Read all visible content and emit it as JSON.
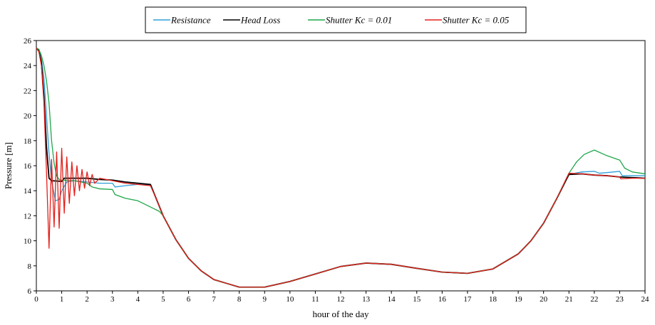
{
  "chart_data": {
    "type": "line",
    "xlabel": "hour of the day",
    "ylabel": "Pressure [m]",
    "xlim": [
      0,
      24
    ],
    "ylim": [
      6,
      26
    ],
    "xticks": [
      0,
      1,
      2,
      3,
      4,
      5,
      6,
      7,
      8,
      9,
      10,
      11,
      12,
      13,
      14,
      15,
      16,
      17,
      18,
      19,
      20,
      21,
      22,
      23,
      24
    ],
    "yticks": [
      6,
      8,
      10,
      12,
      14,
      16,
      18,
      20,
      22,
      24,
      26
    ],
    "grid": false,
    "legend_position": "top-center",
    "series": [
      {
        "name": "Resistance",
        "color": "#2f9fd8",
        "points": [
          [
            0,
            25.4
          ],
          [
            0.1,
            25.2
          ],
          [
            0.2,
            24.5
          ],
          [
            0.3,
            23.0
          ],
          [
            0.4,
            20.0
          ],
          [
            0.5,
            17.0
          ],
          [
            0.6,
            14.8
          ],
          [
            0.75,
            13.2
          ],
          [
            0.9,
            13.3
          ],
          [
            1.0,
            14.0
          ],
          [
            1.2,
            14.7
          ],
          [
            1.5,
            14.8
          ],
          [
            2.0,
            14.7
          ],
          [
            2.5,
            14.6
          ],
          [
            3.0,
            14.6
          ],
          [
            3.1,
            14.3
          ],
          [
            3.5,
            14.4
          ],
          [
            4.0,
            14.5
          ],
          [
            4.3,
            14.5
          ],
          [
            4.5,
            14.4
          ],
          [
            4.7,
            13.5
          ],
          [
            5.0,
            12.0
          ],
          [
            5.5,
            10.1
          ],
          [
            6,
            8.6
          ],
          [
            6.5,
            7.6
          ],
          [
            7,
            6.9
          ],
          [
            7.5,
            6.6
          ],
          [
            8,
            6.3
          ],
          [
            9,
            6.3
          ],
          [
            10,
            6.75
          ],
          [
            11,
            7.35
          ],
          [
            12,
            7.95
          ],
          [
            13,
            8.22
          ],
          [
            14,
            8.12
          ],
          [
            15,
            7.8
          ],
          [
            16,
            7.5
          ],
          [
            17,
            7.4
          ],
          [
            18,
            7.75
          ],
          [
            19,
            8.95
          ],
          [
            19.5,
            10.0
          ],
          [
            20,
            11.4
          ],
          [
            20.5,
            13.3
          ],
          [
            21,
            15.3
          ],
          [
            21.5,
            15.5
          ],
          [
            22,
            15.55
          ],
          [
            22.2,
            15.4
          ],
          [
            22.5,
            15.45
          ],
          [
            23,
            15.55
          ],
          [
            23.1,
            15.2
          ],
          [
            23.5,
            15.2
          ],
          [
            24,
            15.2
          ]
        ]
      },
      {
        "name": "Head Loss",
        "color": "#000000",
        "points": [
          [
            0,
            25.4
          ],
          [
            0.1,
            25.2
          ],
          [
            0.2,
            24.2
          ],
          [
            0.3,
            21.5
          ],
          [
            0.4,
            17.5
          ],
          [
            0.5,
            15.0
          ],
          [
            0.6,
            14.8
          ],
          [
            1.0,
            14.75
          ],
          [
            1.1,
            15.0
          ],
          [
            1.5,
            15.0
          ],
          [
            2.0,
            15.0
          ],
          [
            2.5,
            14.9
          ],
          [
            3.0,
            14.85
          ],
          [
            3.5,
            14.7
          ],
          [
            4.0,
            14.6
          ],
          [
            4.5,
            14.5
          ],
          [
            4.7,
            13.5
          ],
          [
            5.0,
            12.0
          ],
          [
            5.5,
            10.1
          ],
          [
            6,
            8.6
          ],
          [
            6.5,
            7.6
          ],
          [
            7,
            6.9
          ],
          [
            7.5,
            6.6
          ],
          [
            8,
            6.3
          ],
          [
            9,
            6.3
          ],
          [
            10,
            6.75
          ],
          [
            11,
            7.35
          ],
          [
            12,
            7.95
          ],
          [
            13,
            8.22
          ],
          [
            14,
            8.12
          ],
          [
            15,
            7.8
          ],
          [
            16,
            7.5
          ],
          [
            17,
            7.4
          ],
          [
            18,
            7.75
          ],
          [
            19,
            8.95
          ],
          [
            19.5,
            10.0
          ],
          [
            20,
            11.4
          ],
          [
            20.5,
            13.3
          ],
          [
            21,
            15.3
          ],
          [
            21.5,
            15.35
          ],
          [
            22,
            15.25
          ],
          [
            22.5,
            15.2
          ],
          [
            23,
            15.1
          ],
          [
            23.5,
            15.05
          ],
          [
            24,
            15.0
          ]
        ]
      },
      {
        "name": "Shutter Kc = 0.01",
        "color": "#1fa64a",
        "points": [
          [
            0,
            25.4
          ],
          [
            0.1,
            25.3
          ],
          [
            0.2,
            24.8
          ],
          [
            0.3,
            24.0
          ],
          [
            0.4,
            22.8
          ],
          [
            0.5,
            21.0
          ],
          [
            0.6,
            18.0
          ],
          [
            0.7,
            16.2
          ],
          [
            0.8,
            15.2
          ],
          [
            0.9,
            14.9
          ],
          [
            1.0,
            14.85
          ],
          [
            1.5,
            14.8
          ],
          [
            2.0,
            14.6
          ],
          [
            2.2,
            14.3
          ],
          [
            2.5,
            14.15
          ],
          [
            3.0,
            14.1
          ],
          [
            3.1,
            13.7
          ],
          [
            3.5,
            13.4
          ],
          [
            4.0,
            13.2
          ],
          [
            4.3,
            12.9
          ],
          [
            4.6,
            12.6
          ],
          [
            4.85,
            12.35
          ],
          [
            5.0,
            12.0
          ],
          [
            5.5,
            10.1
          ],
          [
            6,
            8.6
          ],
          [
            6.5,
            7.6
          ],
          [
            7,
            6.9
          ],
          [
            7.5,
            6.6
          ],
          [
            8,
            6.3
          ],
          [
            9,
            6.3
          ],
          [
            10,
            6.75
          ],
          [
            11,
            7.35
          ],
          [
            12,
            7.95
          ],
          [
            13,
            8.22
          ],
          [
            14,
            8.12
          ],
          [
            15,
            7.8
          ],
          [
            16,
            7.5
          ],
          [
            17,
            7.4
          ],
          [
            18,
            7.75
          ],
          [
            19,
            8.95
          ],
          [
            19.5,
            10.0
          ],
          [
            20,
            11.4
          ],
          [
            20.5,
            13.3
          ],
          [
            21,
            15.4
          ],
          [
            21.3,
            16.3
          ],
          [
            21.6,
            16.9
          ],
          [
            22,
            17.25
          ],
          [
            22.5,
            16.8
          ],
          [
            23,
            16.45
          ],
          [
            23.2,
            15.8
          ],
          [
            23.5,
            15.5
          ],
          [
            24,
            15.35
          ]
        ]
      },
      {
        "name": "Shutter Kc = 0.05",
        "color": "#e3201b",
        "points": [
          [
            0,
            25.4
          ],
          [
            0.1,
            25.1
          ],
          [
            0.2,
            24.0
          ],
          [
            0.3,
            21.0
          ],
          [
            0.4,
            15.5
          ],
          [
            0.5,
            9.4
          ],
          [
            0.6,
            16.5
          ],
          [
            0.7,
            11.1
          ],
          [
            0.8,
            17.1
          ],
          [
            0.9,
            11.0
          ],
          [
            1.0,
            17.4
          ],
          [
            1.1,
            12.2
          ],
          [
            1.2,
            16.7
          ],
          [
            1.3,
            13.0
          ],
          [
            1.4,
            16.3
          ],
          [
            1.5,
            13.6
          ],
          [
            1.6,
            16.0
          ],
          [
            1.7,
            14.0
          ],
          [
            1.8,
            15.7
          ],
          [
            1.9,
            14.2
          ],
          [
            2.0,
            15.5
          ],
          [
            2.1,
            14.4
          ],
          [
            2.2,
            15.3
          ],
          [
            2.3,
            14.6
          ],
          [
            2.5,
            15.0
          ],
          [
            3.0,
            14.8
          ],
          [
            3.5,
            14.6
          ],
          [
            4.0,
            14.5
          ],
          [
            4.5,
            14.4
          ],
          [
            4.7,
            13.5
          ],
          [
            5.0,
            12.0
          ],
          [
            5.5,
            10.1
          ],
          [
            6,
            8.6
          ],
          [
            6.5,
            7.6
          ],
          [
            7,
            6.9
          ],
          [
            7.5,
            6.6
          ],
          [
            8,
            6.3
          ],
          [
            9,
            6.3
          ],
          [
            10,
            6.75
          ],
          [
            11,
            7.35
          ],
          [
            12,
            7.95
          ],
          [
            13,
            8.22
          ],
          [
            14,
            8.12
          ],
          [
            15,
            7.8
          ],
          [
            16,
            7.5
          ],
          [
            17,
            7.4
          ],
          [
            18,
            7.75
          ],
          [
            19,
            8.95
          ],
          [
            19.5,
            10.0
          ],
          [
            20,
            11.4
          ],
          [
            20.5,
            13.3
          ],
          [
            21,
            15.4
          ],
          [
            21.5,
            15.35
          ],
          [
            22,
            15.25
          ],
          [
            22.5,
            15.2
          ],
          [
            23,
            15.1
          ],
          [
            23.05,
            14.95
          ],
          [
            23.5,
            15.0
          ],
          [
            24,
            15.0
          ]
        ]
      }
    ]
  }
}
